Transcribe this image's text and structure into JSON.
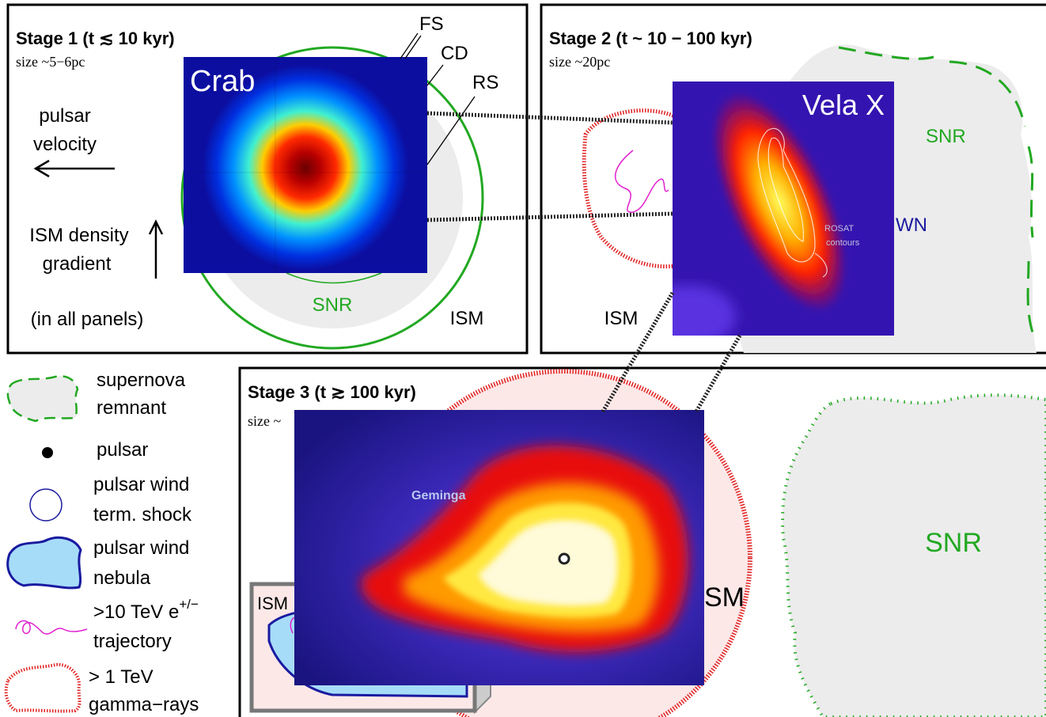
{
  "panels": [
    {
      "title": "Stage 1 (t ≲ 10 kyr)",
      "size": "size ~5−6pc",
      "image_label": "Crab",
      "labels": [
        "FS",
        "CD",
        "RS",
        "pulsar",
        "velocity",
        "ISM density",
        "gradient",
        "(in all panels)",
        "SNR",
        "ISM"
      ]
    },
    {
      "title": "Stage 2 (t ~ 10 − 100 kyr)",
      "size": "size ~20pc",
      "image_label": "Vela X",
      "labels": [
        "SNR",
        "WN",
        "ISM",
        "ROSAT",
        "contours"
      ]
    },
    {
      "title": "Stage 3 (t ≳ 100 kyr)",
      "size": "size ~",
      "image_label": "Geminga",
      "labels": [
        "ISM",
        "SM",
        "SNR"
      ]
    }
  ],
  "legend": [
    {
      "lines": [
        "supernova",
        "remnant"
      ]
    },
    {
      "lines": [
        "pulsar"
      ]
    },
    {
      "lines": [
        "pulsar wind",
        "term. shock"
      ]
    },
    {
      "lines": [
        "pulsar wind",
        "nebula"
      ]
    },
    {
      "lines": [
        ">10 TeV e",
        "trajectory"
      ],
      "sup": "+/−"
    },
    {
      "lines": [
        "> 1 TeV",
        "gamma−rays"
      ]
    }
  ]
}
